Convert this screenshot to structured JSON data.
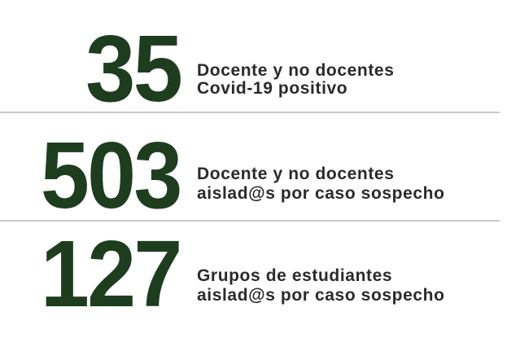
{
  "stats": [
    {
      "number": "35",
      "line1": "Docente y no docentes",
      "line2": "Covid-19 positivo"
    },
    {
      "number": "503",
      "line1": "Docente y no docentes",
      "line2": "aislad@s por caso sospecho"
    },
    {
      "number": "127",
      "line1": "Grupos de estudiantes",
      "line2": "aislad@s por caso sospecho"
    }
  ],
  "colors": {
    "number": "#1e3d1e",
    "text": "#2a2a2a",
    "divider": "#c8c8c8"
  }
}
